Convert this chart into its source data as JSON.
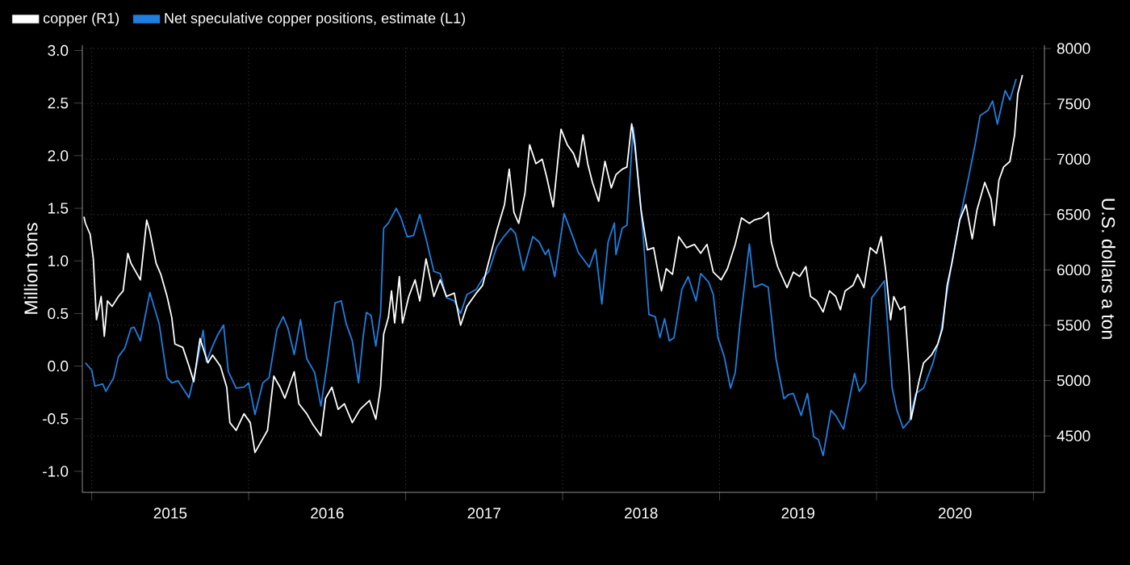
{
  "chart_data": {
    "type": "line",
    "ylabel": "Million tons",
    "y2label": "U.S. dollars a ton",
    "legend": "top left",
    "grid": true,
    "xlim": [
      2014.94,
      2021.07
    ],
    "xticks": [
      {
        "value": 2015,
        "label": null
      },
      {
        "value": 2015.5,
        "label": "2015"
      },
      {
        "value": 2016,
        "label": null
      },
      {
        "value": 2016.5,
        "label": "2016"
      },
      {
        "value": 2017,
        "label": null
      },
      {
        "value": 2017.5,
        "label": "2017"
      },
      {
        "value": 2018,
        "label": null
      },
      {
        "value": 2018.5,
        "label": "2018"
      },
      {
        "value": 2019,
        "label": null
      },
      {
        "value": 2019.5,
        "label": "2019"
      },
      {
        "value": 2020,
        "label": null
      },
      {
        "value": 2020.5,
        "label": "2020"
      },
      {
        "value": 2021,
        "label": null
      }
    ],
    "ylim": [
      -1.2,
      3.05
    ],
    "yticks": [
      {
        "value": -1,
        "label": "-1.0"
      },
      -0.5,
      {
        "value": 0,
        "label": "0.0"
      },
      0.5,
      {
        "value": 1,
        "label": "1.0"
      },
      1.5,
      {
        "value": 2,
        "label": "2.0"
      },
      2.5,
      {
        "value": 3,
        "label": "3.0"
      }
    ],
    "y2lim": [
      3990,
      8030
    ],
    "y2ticks": [
      4500,
      5000,
      5500,
      6000,
      6500,
      7000,
      7500,
      8000
    ],
    "series": [
      {
        "name": "copper (R1)",
        "color": "#ffffff",
        "axis": "y2",
        "x": [
          2014.95,
          2014.96,
          2014.99,
          2015.01,
          2015.03,
          2015.06,
          2015.08,
          2015.1,
          2015.13,
          2015.17,
          2015.2,
          2015.23,
          2015.25,
          2015.29,
          2015.31,
          2015.35,
          2015.37,
          2015.41,
          2015.44,
          2015.48,
          2015.51,
          2015.53,
          2015.58,
          2015.62,
          2015.65,
          2015.69,
          2015.74,
          2015.77,
          2015.82,
          2015.86,
          2015.88,
          2015.92,
          2015.97,
          2016.01,
          2016.04,
          2016.08,
          2016.12,
          2016.16,
          2016.2,
          2016.23,
          2016.29,
          2016.32,
          2016.37,
          2016.41,
          2016.46,
          2016.49,
          2016.53,
          2016.57,
          2016.61,
          2016.66,
          2016.71,
          2016.77,
          2016.81,
          2016.84,
          2016.86,
          2016.89,
          2016.91,
          2016.93,
          2016.96,
          2016.98,
          2017.02,
          2017.06,
          2017.09,
          2017.13,
          2017.18,
          2017.22,
          2017.26,
          2017.31,
          2017.35,
          2017.39,
          2017.45,
          2017.49,
          2017.54,
          2017.58,
          2017.63,
          2017.66,
          2017.69,
          2017.72,
          2017.76,
          2017.79,
          2017.83,
          2017.87,
          2017.9,
          2017.94,
          2017.99,
          2018.03,
          2018.07,
          2018.1,
          2018.13,
          2018.16,
          2018.19,
          2018.23,
          2018.27,
          2018.31,
          2018.34,
          2018.38,
          2018.41,
          2018.44,
          2018.46,
          2018.5,
          2018.54,
          2018.58,
          2018.63,
          2018.66,
          2018.7,
          2018.74,
          2018.79,
          2018.84,
          2018.88,
          2018.92,
          2018.96,
          2019.01,
          2019.05,
          2019.1,
          2019.14,
          2019.19,
          2019.22,
          2019.27,
          2019.31,
          2019.33,
          2019.37,
          2019.43,
          2019.47,
          2019.51,
          2019.55,
          2019.58,
          2019.62,
          2019.66,
          2019.7,
          2019.74,
          2019.77,
          2019.8,
          2019.85,
          2019.88,
          2019.92,
          2019.96,
          2020.0,
          2020.03,
          2020.06,
          2020.09,
          2020.11,
          2020.15,
          2020.18,
          2020.21,
          2020.22,
          2020.27,
          2020.3,
          2020.35,
          2020.39,
          2020.42,
          2020.45,
          2020.48,
          2020.53,
          2020.57,
          2020.61,
          2020.64,
          2020.69,
          2020.73,
          2020.75,
          2020.78,
          2020.81,
          2020.85,
          2020.88,
          2020.9,
          2020.93
        ],
        "values": [
          6480,
          6420,
          6320,
          6100,
          5550,
          5760,
          5400,
          5720,
          5670,
          5760,
          5810,
          6150,
          6060,
          5960,
          5910,
          6450,
          6350,
          6060,
          5960,
          5760,
          5570,
          5330,
          5300,
          5130,
          4990,
          5380,
          5160,
          5230,
          5130,
          4940,
          4620,
          4550,
          4700,
          4620,
          4350,
          4450,
          4550,
          5040,
          4940,
          4840,
          5080,
          4790,
          4700,
          4600,
          4500,
          4840,
          4940,
          4740,
          4790,
          4620,
          4740,
          4820,
          4650,
          4940,
          5420,
          5570,
          5810,
          5520,
          5940,
          5520,
          5760,
          5910,
          5720,
          6100,
          5760,
          5910,
          5760,
          5790,
          5500,
          5670,
          5790,
          5860,
          6130,
          6350,
          6590,
          6910,
          6520,
          6420,
          6690,
          7130,
          6960,
          7000,
          6830,
          6570,
          7270,
          7130,
          7050,
          6930,
          7220,
          6960,
          6790,
          6620,
          6980,
          6740,
          6860,
          6910,
          6930,
          7320,
          7130,
          6540,
          6180,
          6200,
          5810,
          6010,
          5960,
          6300,
          6200,
          6230,
          6150,
          6230,
          5980,
          5910,
          6010,
          6230,
          6470,
          6420,
          6450,
          6470,
          6520,
          6250,
          6030,
          5840,
          5980,
          5940,
          6030,
          5760,
          5720,
          5620,
          5810,
          5760,
          5640,
          5810,
          5860,
          5960,
          5840,
          6200,
          6150,
          6300,
          5980,
          5550,
          5760,
          5640,
          5670,
          5040,
          4650,
          4990,
          5160,
          5230,
          5330,
          5470,
          5860,
          6060,
          6450,
          6590,
          6280,
          6540,
          6790,
          6640,
          6400,
          6810,
          6930,
          6980,
          7220,
          7590,
          7760
        ]
      },
      {
        "name": "Net speculative copper positions, estimate (L1)",
        "color": "#1f7fe0",
        "x": [
          2014.96,
          2015.0,
          2015.02,
          2015.07,
          2015.09,
          2015.14,
          2015.17,
          2015.21,
          2015.25,
          2015.27,
          2015.31,
          2015.37,
          2015.43,
          2015.48,
          2015.51,
          2015.55,
          2015.58,
          2015.62,
          2015.67,
          2015.71,
          2015.73,
          2015.77,
          2015.8,
          2015.84,
          2015.87,
          2015.92,
          2015.97,
          2016.0,
          2016.04,
          2016.09,
          2016.13,
          2016.18,
          2016.22,
          2016.25,
          2016.29,
          2016.33,
          2016.37,
          2016.42,
          2016.46,
          2016.5,
          2016.55,
          2016.59,
          2016.62,
          2016.66,
          2016.7,
          2016.73,
          2016.75,
          2016.78,
          2016.81,
          2016.84,
          2016.86,
          2016.89,
          2016.94,
          2016.97,
          2017.01,
          2017.05,
          2017.09,
          2017.13,
          2017.18,
          2017.22,
          2017.26,
          2017.31,
          2017.35,
          2017.39,
          2017.45,
          2017.49,
          2017.53,
          2017.58,
          2017.62,
          2017.67,
          2017.7,
          2017.75,
          2017.81,
          2017.85,
          2017.89,
          2017.91,
          2017.95,
          2018.01,
          2018.07,
          2018.1,
          2018.17,
          2018.21,
          2018.25,
          2018.29,
          2018.33,
          2018.34,
          2018.38,
          2018.41,
          2018.45,
          2018.46,
          2018.51,
          2018.55,
          2018.59,
          2018.62,
          2018.65,
          2018.68,
          2018.71,
          2018.76,
          2018.8,
          2018.85,
          2018.88,
          2018.93,
          2018.96,
          2018.99,
          2019.03,
          2019.07,
          2019.1,
          2019.13,
          2019.19,
          2019.22,
          2019.27,
          2019.31,
          2019.36,
          2019.41,
          2019.44,
          2019.47,
          2019.52,
          2019.56,
          2019.6,
          2019.63,
          2019.66,
          2019.71,
          2019.74,
          2019.79,
          2019.82,
          2019.86,
          2019.89,
          2019.93,
          2019.97,
          2020.01,
          2020.05,
          2020.1,
          2020.13,
          2020.17,
          2020.21,
          2020.25,
          2020.3,
          2020.36,
          2020.41,
          2020.46,
          2020.49,
          2020.54,
          2020.59,
          2020.63,
          2020.66,
          2020.71,
          2020.74,
          2020.77,
          2020.82,
          2020.85,
          2020.89
        ],
        "values": [
          0.03,
          -0.04,
          -0.19,
          -0.17,
          -0.24,
          -0.11,
          0.09,
          0.17,
          0.36,
          0.37,
          0.24,
          0.7,
          0.4,
          -0.11,
          -0.16,
          -0.14,
          -0.21,
          -0.3,
          0.02,
          0.34,
          0.04,
          0.19,
          0.29,
          0.39,
          -0.05,
          -0.21,
          -0.2,
          -0.16,
          -0.46,
          -0.16,
          -0.11,
          0.35,
          0.47,
          0.36,
          0.11,
          0.44,
          0.07,
          -0.06,
          -0.38,
          0.02,
          0.6,
          0.62,
          0.41,
          0.24,
          -0.16,
          0.29,
          0.51,
          0.48,
          0.19,
          0.5,
          1.31,
          1.36,
          1.5,
          1.41,
          1.23,
          1.24,
          1.44,
          1.21,
          0.9,
          0.88,
          0.65,
          0.62,
          0.5,
          0.68,
          0.73,
          0.83,
          0.9,
          1.13,
          1.22,
          1.31,
          1.26,
          0.91,
          1.23,
          1.18,
          1.06,
          1.11,
          0.85,
          1.45,
          1.21,
          1.08,
          0.94,
          1.11,
          0.59,
          1.18,
          1.36,
          1.06,
          1.31,
          1.34,
          2.27,
          2.15,
          1.31,
          0.49,
          0.47,
          0.27,
          0.45,
          0.24,
          0.27,
          0.73,
          0.85,
          0.62,
          0.88,
          0.8,
          0.68,
          0.27,
          0.09,
          -0.21,
          -0.06,
          0.4,
          1.16,
          0.75,
          0.78,
          0.75,
          0.07,
          -0.31,
          -0.27,
          -0.26,
          -0.47,
          -0.26,
          -0.67,
          -0.7,
          -0.85,
          -0.42,
          -0.47,
          -0.6,
          -0.37,
          -0.07,
          -0.24,
          -0.16,
          0.65,
          0.73,
          0.81,
          -0.21,
          -0.42,
          -0.59,
          -0.52,
          -0.26,
          -0.21,
          0.03,
          0.32,
          0.8,
          1.06,
          1.46,
          1.82,
          2.12,
          2.38,
          2.43,
          2.52,
          2.3,
          2.62,
          2.53,
          2.73
        ]
      }
    ]
  }
}
